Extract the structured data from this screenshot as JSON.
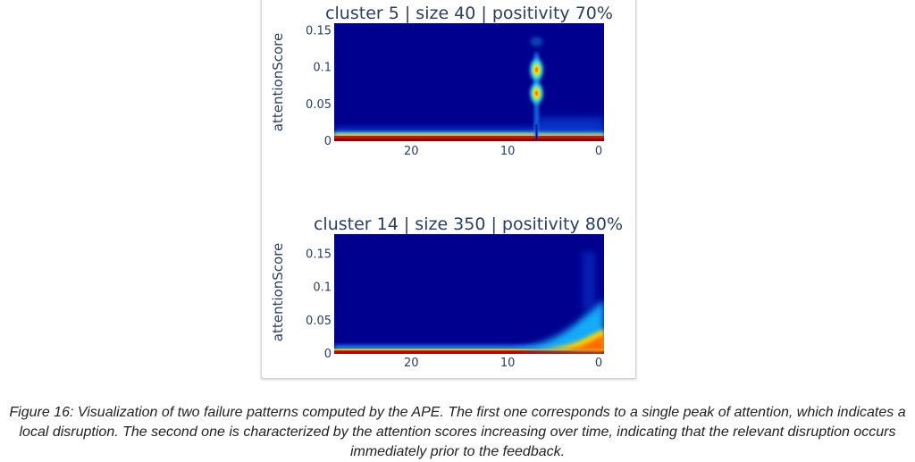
{
  "chart_data": [
    {
      "type": "heatmap",
      "title": "cluster 5 | size 40 | positivity 70%",
      "xlabel": "",
      "ylabel": "attentionScore",
      "xlim": [
        28,
        0
      ],
      "ylim": [
        0,
        0.16
      ],
      "x_ticks": [
        {
          "value": 20,
          "label": "20"
        },
        {
          "value": 10,
          "label": "10"
        },
        {
          "value": 0,
          "label": "0"
        }
      ],
      "y_ticks": [
        {
          "value": 0,
          "label": "0"
        },
        {
          "value": 0.05,
          "label": "0.05"
        },
        {
          "value": 0.1,
          "label": "0.1"
        },
        {
          "value": 0.15,
          "label": "0.15"
        }
      ],
      "pattern": "single-peak",
      "peak": {
        "x": 7,
        "ridge_y": [
          0.0,
          0.12
        ],
        "hotspots": [
          {
            "x": 7,
            "y": 0.097,
            "intensity": 0.9
          },
          {
            "x": 7,
            "y": 0.065,
            "intensity": 0.85
          },
          {
            "x": 7,
            "y": 0.135,
            "intensity": 0.3
          }
        ]
      },
      "baseline_y": 0.006,
      "grid": false,
      "legend": "none"
    },
    {
      "type": "heatmap",
      "title": "cluster 14 | size 350 | positivity 80%",
      "xlabel": "",
      "ylabel": "attentionScore",
      "xlim": [
        28,
        0
      ],
      "ylim": [
        0,
        0.18
      ],
      "x_ticks": [
        {
          "value": 20,
          "label": "20"
        },
        {
          "value": 10,
          "label": "10"
        },
        {
          "value": 0,
          "label": "0"
        }
      ],
      "y_ticks": [
        {
          "value": 0,
          "label": "0"
        },
        {
          "value": 0.05,
          "label": "0.05"
        },
        {
          "value": 0.1,
          "label": "0.1"
        },
        {
          "value": 0.15,
          "label": "0.15"
        }
      ],
      "pattern": "increasing-over-time",
      "baseline_y": 0.005,
      "rise": {
        "start_x": 10,
        "end_x": 0,
        "end_y_mean": 0.03,
        "end_y_spread": 0.05
      },
      "grid": false,
      "legend": "none"
    }
  ],
  "caption": "Figure 16: Visualization of two failure patterns computed by the APE. The first one corresponds to a single peak of attention, which indicates a local disruption. The second one is characterized by the attention scores increasing over time, indicating that the relevant disruption occurs immediately prior to the feedback."
}
